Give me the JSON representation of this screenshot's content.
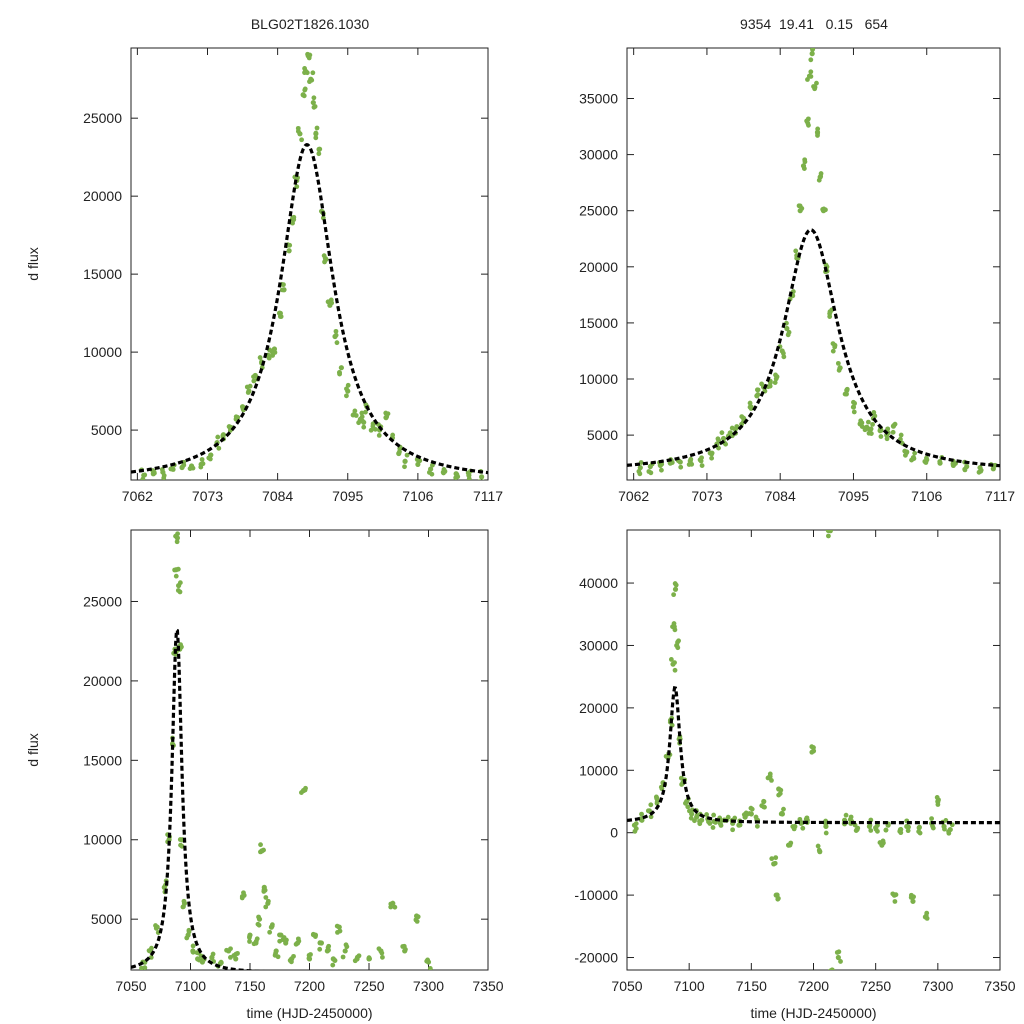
{
  "chart_data": [
    {
      "id": "top-left",
      "type": "scatter",
      "title": "BLG02T1826.1030",
      "xlabel": "",
      "ylabel": "d flux",
      "xlim": [
        7061,
        7117
      ],
      "ylim": [
        1800,
        29500
      ],
      "xticks": [
        "7062",
        "7073",
        "7084",
        "7095",
        "7106",
        "7117"
      ],
      "yticks": [
        "5000",
        "10000",
        "15000",
        "20000",
        "25000"
      ],
      "point_color": "#7cb04a",
      "fit": {
        "style": "dashed",
        "color": "#000000",
        "t0": 7088.6,
        "tE": 7.0,
        "baseline": 1600,
        "peak": 23300
      },
      "series": [
        {
          "name": "data",
          "x": [
            7063.0,
            7064.5,
            7066.0,
            7067.5,
            7069.0,
            7070.5,
            7072.0,
            7073.5,
            7074.5,
            7075.5,
            7076.5,
            7077.5,
            7078.5,
            7079.5,
            7080.5,
            7081.5,
            7082.5,
            7083.5,
            7084.3,
            7085.0,
            7085.8,
            7086.5,
            7087.0,
            7087.5,
            7088.0,
            7088.4,
            7088.8,
            7089.2,
            7089.6,
            7090.0,
            7090.5,
            7091.0,
            7091.5,
            7092.2,
            7093.0,
            7094.0,
            7095.0,
            7096.0,
            7097.0,
            7097.5,
            7098.0,
            7099.0,
            7100.0,
            7101.0,
            7102.0,
            7103.0,
            7104.0,
            7106.0,
            7108.0,
            7110.0,
            7112.0,
            7114.0,
            7116.0
          ],
          "y": [
            2100,
            2200,
            2300,
            2500,
            2600,
            2700,
            2800,
            3400,
            4200,
            4700,
            5200,
            5700,
            6500,
            7500,
            8500,
            9300,
            9800,
            10200,
            12500,
            14000,
            16500,
            18500,
            21000,
            24000,
            26500,
            28000,
            29000,
            27500,
            26000,
            24000,
            23000,
            19000,
            16000,
            13000,
            11000,
            9000,
            7500,
            6000,
            5700,
            5500,
            6500,
            5400,
            5000,
            5800,
            4500,
            3500,
            3000,
            2800,
            2500,
            2300,
            2200,
            2100,
            2000
          ]
        }
      ]
    },
    {
      "id": "top-right",
      "type": "scatter",
      "title": "9354  19.41   0.15   654",
      "xlabel": "",
      "ylabel": "",
      "xlim": [
        7061,
        7117
      ],
      "ylim": [
        1000,
        39500
      ],
      "xticks": [
        "7062",
        "7073",
        "7084",
        "7095",
        "7106",
        "7117"
      ],
      "yticks": [
        "5000",
        "10000",
        "15000",
        "20000",
        "25000",
        "30000",
        "35000"
      ],
      "point_color": "#7cb04a",
      "fit": {
        "style": "dashed",
        "color": "#000000",
        "t0": 7088.6,
        "tE": 7.0,
        "baseline": 1600,
        "peak": 23300
      },
      "series": [
        {
          "name": "data",
          "x": [
            7063.0,
            7064.5,
            7066.0,
            7067.5,
            7069.0,
            7070.5,
            7072.0,
            7073.5,
            7074.5,
            7075.5,
            7076.5,
            7077.5,
            7078.5,
            7079.5,
            7080.5,
            7081.5,
            7082.5,
            7083.5,
            7084.3,
            7085.0,
            7085.8,
            7086.5,
            7087.0,
            7087.5,
            7088.0,
            7088.4,
            7088.8,
            7089.2,
            7089.6,
            7090.0,
            7090.5,
            7091.0,
            7091.5,
            7092.2,
            7093.0,
            7094.0,
            7095.0,
            7096.0,
            7097.0,
            7097.5,
            7098.0,
            7099.0,
            7100.0,
            7101.0,
            7102.0,
            7103.0,
            7104.0,
            7106.0,
            7108.0,
            7110.0,
            7112.0,
            7114.0,
            7116.0
          ],
          "y": [
            2100,
            2200,
            2300,
            2500,
            2600,
            2700,
            2800,
            3400,
            4200,
            4700,
            5200,
            5700,
            6500,
            7500,
            8500,
            9300,
            9800,
            10200,
            12500,
            14500,
            17500,
            21000,
            25000,
            29000,
            33000,
            37000,
            39000,
            36000,
            32000,
            28000,
            25000,
            20000,
            16000,
            13000,
            11000,
            9000,
            7500,
            6000,
            5700,
            5500,
            6500,
            5400,
            5000,
            5800,
            4500,
            3500,
            3000,
            2800,
            2500,
            2300,
            2200,
            2100,
            2000
          ]
        }
      ]
    },
    {
      "id": "bottom-left",
      "type": "scatter",
      "title": "",
      "xlabel": "time (HJD-2450000)",
      "ylabel": "d flux",
      "xlim": [
        7050,
        7350
      ],
      "ylim": [
        1800,
        29500
      ],
      "xticks": [
        "7050",
        "7100",
        "7150",
        "7200",
        "7250",
        "7300",
        "7350"
      ],
      "yticks": [
        "5000",
        "10000",
        "15000",
        "20000",
        "25000"
      ],
      "point_color": "#7cb04a",
      "fit": {
        "style": "dashed",
        "color": "#000000",
        "t0": 7088.6,
        "tE": 7.0,
        "baseline": 1600,
        "peak": 23300
      },
      "series": [
        {
          "name": "data",
          "x": [
            7060,
            7066,
            7072,
            7078,
            7082,
            7085,
            7087,
            7088,
            7089,
            7090,
            7091,
            7093,
            7095,
            7098,
            7102,
            7106,
            7110,
            7118,
            7125,
            7132,
            7138,
            7145,
            7150,
            7155,
            7158,
            7160,
            7162,
            7165,
            7168,
            7172,
            7176,
            7180,
            7185,
            7190,
            7195,
            7200,
            7205,
            7210,
            7215,
            7220,
            7225,
            7230,
            7240,
            7250,
            7260,
            7270,
            7280,
            7290,
            7300
          ],
          "y": [
            2300,
            3000,
            4500,
            7000,
            10000,
            16000,
            22000,
            27000,
            29000,
            26000,
            22000,
            10000,
            6000,
            4000,
            3000,
            2500,
            2300,
            2600,
            2200,
            3000,
            2500,
            6500,
            4000,
            3500,
            5000,
            9300,
            7000,
            6000,
            4500,
            3000,
            4000,
            3500,
            2500,
            3500,
            13100,
            2500,
            4000,
            3500,
            3000,
            2500,
            4500,
            3000,
            2500,
            2500,
            3000,
            6000,
            3000,
            5200,
            2300
          ]
        }
      ]
    },
    {
      "id": "bottom-right",
      "type": "scatter",
      "title": "",
      "xlabel": "time (HJD-2450000)",
      "ylabel": "",
      "xlim": [
        7050,
        7350
      ],
      "ylim": [
        -22000,
        48500
      ],
      "xticks": [
        "7050",
        "7100",
        "7150",
        "7200",
        "7250",
        "7300",
        "7350"
      ],
      "yticks": [
        "-20000",
        "-10000",
        "0",
        "10000",
        "20000",
        "30000",
        "40000"
      ],
      "point_color": "#7cb04a",
      "fit": {
        "style": "dashed",
        "color": "#000000",
        "t0": 7088.6,
        "tE": 7.0,
        "baseline": 1600,
        "peak": 23300
      },
      "series": [
        {
          "name": "data",
          "x": [
            7056,
            7062,
            7068,
            7074,
            7079,
            7083,
            7085,
            7087,
            7088,
            7089,
            7090,
            7092,
            7095,
            7098,
            7102,
            7106,
            7110,
            7115,
            7120,
            7125,
            7130,
            7135,
            7140,
            7145,
            7150,
            7155,
            7160,
            7165,
            7168,
            7170,
            7172,
            7175,
            7180,
            7185,
            7190,
            7195,
            7200,
            7205,
            7210,
            7212,
            7215,
            7220,
            7225,
            7230,
            7235,
            7245,
            7250,
            7255,
            7260,
            7265,
            7270,
            7275,
            7280,
            7285,
            7290,
            7295,
            7300,
            7305,
            7310
          ],
          "y": [
            1200,
            2000,
            3500,
            5500,
            8000,
            12000,
            18000,
            27000,
            33000,
            39000,
            30000,
            15000,
            8000,
            5000,
            3000,
            2500,
            2000,
            2200,
            1800,
            1500,
            2000,
            1500,
            1200,
            2500,
            3000,
            2000,
            5000,
            9000,
            -5000,
            -10000,
            7000,
            3000,
            -2000,
            1000,
            1500,
            2000,
            13100,
            -3000,
            1000,
            48500,
            -22000,
            -20000,
            2000,
            1500,
            500,
            1000,
            800,
            -2000,
            1200,
            -10000,
            500,
            1000,
            -11000,
            800,
            -13500,
            1500,
            5000,
            1000,
            500
          ]
        }
      ]
    }
  ]
}
